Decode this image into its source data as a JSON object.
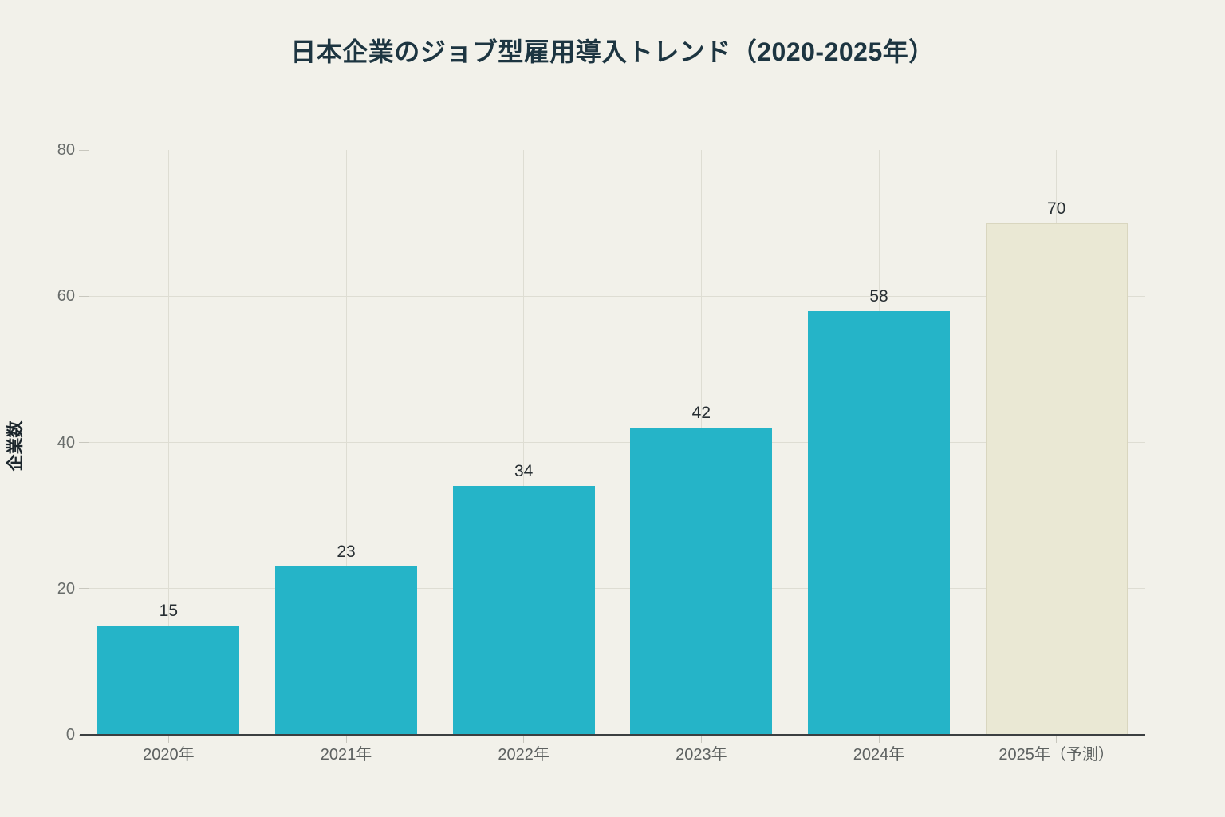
{
  "page": {
    "background": "#f2f1ea"
  },
  "chart_data": {
    "type": "bar",
    "title": "日本企業のジョブ型雇用導入トレンド（2020-2025年）",
    "xlabel": "",
    "ylabel": "企業数",
    "categories": [
      "2020年",
      "2021年",
      "2022年",
      "2023年",
      "2024年",
      "2025年（予測）"
    ],
    "values": [
      15,
      23,
      34,
      42,
      58,
      70
    ],
    "value_labels": [
      "15",
      "23",
      "34",
      "42",
      "58",
      "70"
    ],
    "ylim": [
      0,
      80
    ],
    "yticks": [
      0,
      20,
      40,
      60,
      80
    ],
    "grid": true,
    "gridlines_horizontal_at": [
      20,
      40,
      60
    ],
    "gridlines_vertical": "at each category center",
    "legend": "none",
    "forecast_index": 5,
    "colors": {
      "background": "#f2f1ea",
      "bar": "#25b4c8",
      "forecast_bar_fill": "#eae8d4",
      "forecast_bar_border": "#d9d6bf",
      "title_text": "#1d3541",
      "axis_label_text": "#1b252b",
      "tick_text": "#686c6a",
      "x_tick_text": "#5d6160",
      "value_label_text": "#272e32",
      "gridline": "#deddd3",
      "tick_mark": "#c8c7be",
      "axis_line": "#3b3f41"
    }
  }
}
